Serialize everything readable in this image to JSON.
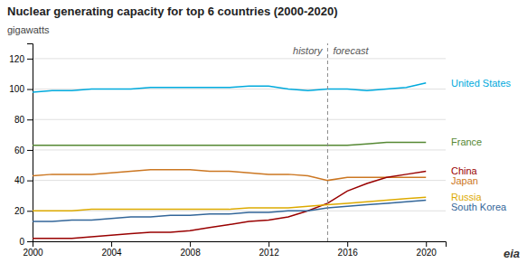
{
  "chart_data": {
    "type": "line",
    "title": "Nuclear generating capacity for top 6 countries (2000-2020)",
    "ylabel": "gigawatts",
    "x": [
      2000,
      2001,
      2002,
      2003,
      2004,
      2005,
      2006,
      2007,
      2008,
      2009,
      2010,
      2011,
      2012,
      2013,
      2014,
      2015,
      2016,
      2017,
      2018,
      2019,
      2020
    ],
    "series": [
      {
        "name": "United States",
        "color": "#00aadd",
        "values": [
          98,
          99,
          99,
          100,
          100,
          100,
          101,
          101,
          101,
          101,
          101,
          102,
          102,
          100,
          99,
          100,
          100,
          99,
          100,
          101,
          104
        ]
      },
      {
        "name": "France",
        "color": "#558833",
        "values": [
          63,
          63,
          63,
          63,
          63,
          63,
          63,
          63,
          63,
          63,
          63,
          63,
          63,
          63,
          63,
          63,
          63,
          64,
          65,
          65,
          65
        ]
      },
      {
        "name": "Japan",
        "color": "#cc7722",
        "values": [
          43,
          44,
          44,
          44,
          45,
          46,
          47,
          47,
          47,
          46,
          46,
          45,
          44,
          44,
          43,
          40,
          42,
          42,
          42,
          42,
          42
        ]
      },
      {
        "name": "China",
        "color": "#990000",
        "values": [
          2,
          2,
          2,
          3,
          4,
          5,
          6,
          6,
          7,
          9,
          11,
          13,
          14,
          16,
          20,
          25,
          33,
          38,
          42,
          44,
          46
        ]
      },
      {
        "name": "Russia",
        "color": "#ddaa00",
        "values": [
          20,
          20,
          20,
          21,
          21,
          21,
          21,
          21,
          21,
          21,
          21,
          22,
          22,
          22,
          23,
          24,
          25,
          26,
          27,
          28,
          29
        ]
      },
      {
        "name": "South Korea",
        "color": "#336699",
        "values": [
          13,
          13,
          14,
          14,
          15,
          16,
          16,
          17,
          17,
          18,
          18,
          19,
          19,
          20,
          20,
          22,
          23,
          24,
          25,
          26,
          27
        ]
      }
    ],
    "xlim": [
      2000,
      2021
    ],
    "xticks": [
      2000,
      2004,
      2008,
      2012,
      2016,
      2020
    ],
    "ylim": [
      0,
      130
    ],
    "yticks": [
      0,
      20,
      40,
      60,
      80,
      100,
      120
    ],
    "grid": true,
    "forecast_line": {
      "x": 2015,
      "labels": [
        "history",
        "forecast"
      ]
    },
    "note": "eia"
  }
}
